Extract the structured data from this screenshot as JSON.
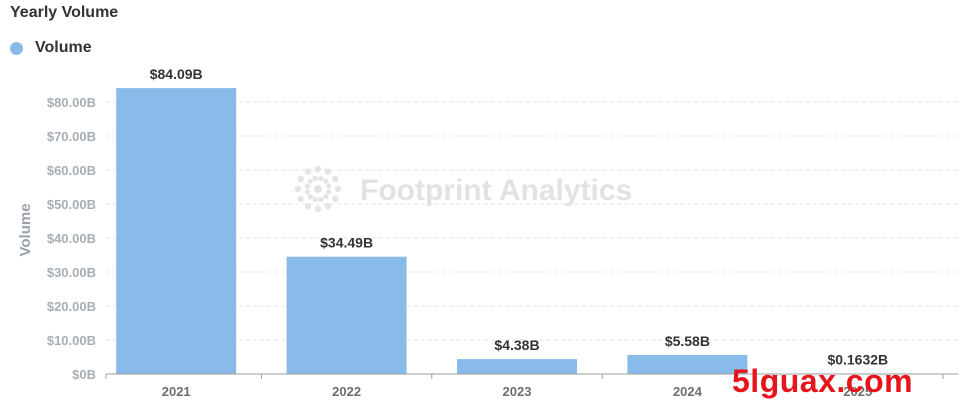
{
  "title": "Yearly Volume",
  "legend": {
    "label": "Volume",
    "color": "#88bbea"
  },
  "watermark": "Footprint Analytics",
  "overlay_watermark": "5lguax.com",
  "chart_data": {
    "type": "bar",
    "title": "Yearly Volume",
    "xlabel": "",
    "ylabel": "Volume",
    "categories": [
      "2021",
      "2022",
      "2023",
      "2024",
      "2025"
    ],
    "series": [
      {
        "name": "Volume",
        "values": [
          84.09,
          34.49,
          4.38,
          5.58,
          0.1632
        ],
        "color": "#88bbea"
      }
    ],
    "data_labels": [
      "$84.09B",
      "$34.49B",
      "$4.38B",
      "$5.58B",
      "$0.1632B"
    ],
    "ylim": [
      0,
      80
    ],
    "yticks": [
      0,
      10,
      20,
      30,
      40,
      50,
      60,
      70,
      80
    ],
    "ytick_labels": [
      "$0B",
      "$10.00B",
      "$20.00B",
      "$30.00B",
      "$40.00B",
      "$50.00B",
      "$60.00B",
      "$70.00B",
      "$80.00B"
    ],
    "grid": true,
    "legend_position": "top-left"
  }
}
